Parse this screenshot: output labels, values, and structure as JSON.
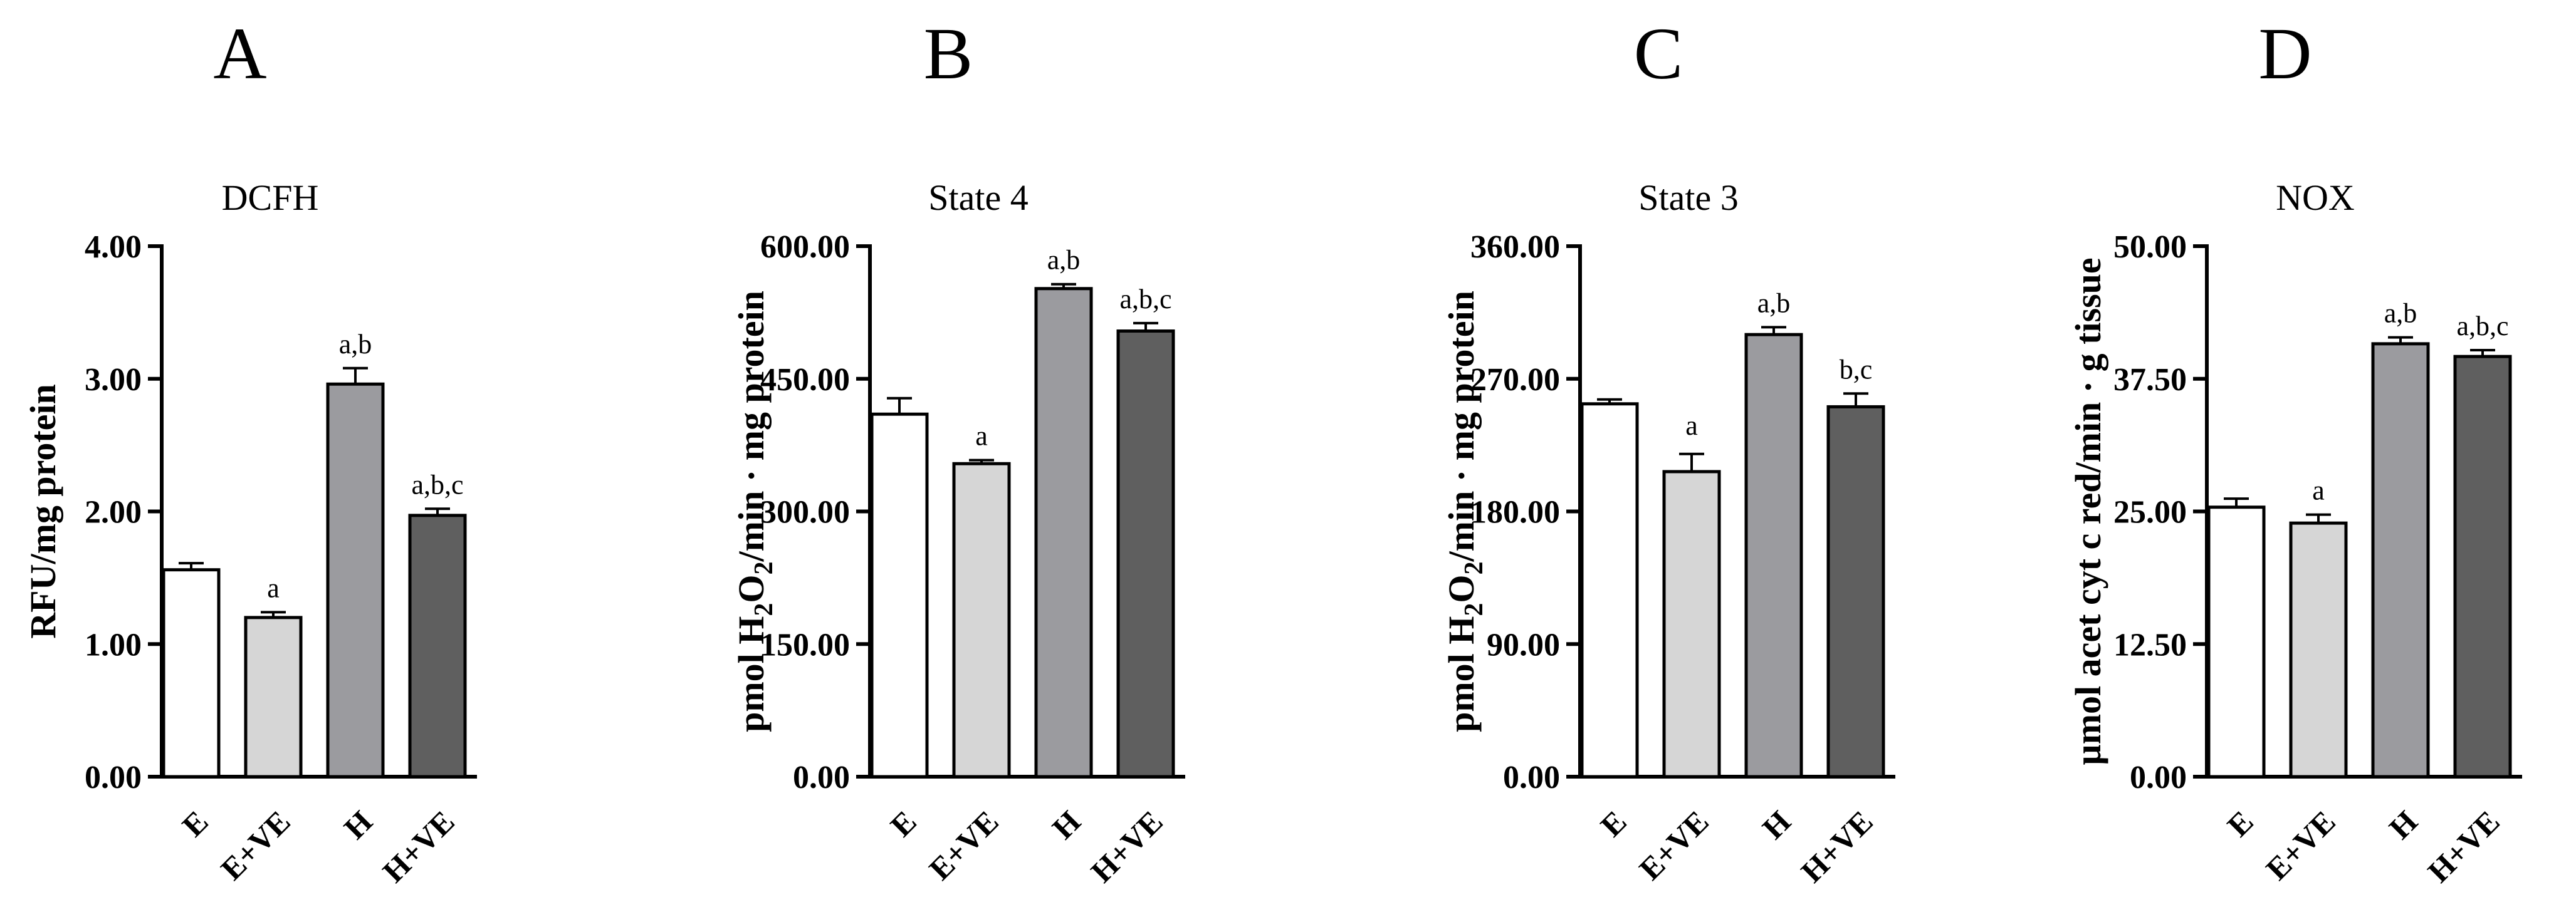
{
  "figure": {
    "groups": [
      "E",
      "E+VE",
      "H",
      "H+VE"
    ]
  },
  "chart_data": [
    {
      "type": "bar",
      "panel": "A",
      "title": "DCFH",
      "ylabel": "RFU/mg protein",
      "ylabel_parts": [
        {
          "t": "RFU/mg protein"
        }
      ],
      "xlabel": "",
      "categories": [
        "E",
        "E+VE",
        "H",
        "H+VE"
      ],
      "values": [
        1.56,
        1.2,
        2.96,
        1.97
      ],
      "errors": [
        0.05,
        0.04,
        0.12,
        0.05
      ],
      "annotations": [
        "",
        "a",
        "a,b",
        "a,b,c"
      ],
      "ylim": [
        0,
        4
      ],
      "yticks": [
        0,
        1,
        2,
        3,
        4
      ],
      "ytick_labels": [
        "0.00",
        "1.00",
        "2.00",
        "3.00",
        "4.00"
      ],
      "colors": [
        "#ffffff",
        "#d6d6d6",
        "#9b9b9f",
        "#5f5f5f"
      ]
    },
    {
      "type": "bar",
      "panel": "B",
      "title": "State 4",
      "ylabel": "pmol H2O2/min · mg protein",
      "ylabel_parts": [
        {
          "t": "pmol H"
        },
        {
          "t": "2",
          "sub": true
        },
        {
          "t": "O"
        },
        {
          "t": "2",
          "sub": true
        },
        {
          "t": "/min · mg protein"
        }
      ],
      "xlabel": "",
      "categories": [
        "E",
        "E+VE",
        "H",
        "H+VE"
      ],
      "values": [
        410,
        354,
        552,
        504
      ],
      "errors": [
        18,
        4,
        5,
        9
      ],
      "annotations": [
        "",
        "a",
        "a,b",
        "a,b,c"
      ],
      "ylim": [
        0,
        600
      ],
      "yticks": [
        0,
        150,
        300,
        450,
        600
      ],
      "ytick_labels": [
        "0.00",
        "150.00",
        "300.00",
        "450.00",
        "600.00"
      ],
      "colors": [
        "#ffffff",
        "#d6d6d6",
        "#9b9b9f",
        "#5f5f5f"
      ]
    },
    {
      "type": "bar",
      "panel": "C",
      "title": "State 3",
      "ylabel": "pmol H2O2/min · mg protein",
      "ylabel_parts": [
        {
          "t": "pmol H"
        },
        {
          "t": "2",
          "sub": true
        },
        {
          "t": "O"
        },
        {
          "t": "2",
          "sub": true
        },
        {
          "t": "/min · mg protein"
        }
      ],
      "xlabel": "",
      "categories": [
        "E",
        "E+VE",
        "H",
        "H+VE"
      ],
      "values": [
        253,
        207,
        300,
        251
      ],
      "errors": [
        3,
        12,
        5,
        9
      ],
      "annotations": [
        "",
        "",
        "a,b",
        "b,c"
      ],
      "ylim": [
        0,
        360
      ],
      "yticks": [
        0,
        90,
        180,
        270,
        360
      ],
      "ytick_labels": [
        "0.00",
        "90.00",
        "180.00",
        "270.00",
        "360.00"
      ],
      "extra_labels": [
        {
          "text": "a",
          "category": "E+VE",
          "value": 232
        }
      ],
      "colors": [
        "#ffffff",
        "#d6d6d6",
        "#9b9b9f",
        "#5f5f5f"
      ]
    },
    {
      "type": "bar",
      "panel": "D",
      "title": "NOX",
      "ylabel": "µmol acet cyt c red/min · g tissue",
      "ylabel_parts": [
        {
          "t": "µmol acet cyt c red/min · g tissue"
        }
      ],
      "xlabel": "",
      "categories": [
        "E",
        "E+VE",
        "H",
        "H+VE"
      ],
      "values": [
        25.4,
        23.9,
        40.8,
        39.6
      ],
      "errors": [
        0.8,
        0.8,
        0.6,
        0.6
      ],
      "annotations": [
        "",
        "a",
        "a,b",
        "a,b,c"
      ],
      "ylim": [
        0,
        50
      ],
      "yticks": [
        0,
        12.5,
        25,
        37.5,
        50
      ],
      "ytick_labels": [
        "0.00",
        "12.50",
        "25.00",
        "37.50",
        "50.00"
      ],
      "colors": [
        "#ffffff",
        "#d6d6d6",
        "#9b9b9f",
        "#5f5f5f"
      ]
    }
  ]
}
